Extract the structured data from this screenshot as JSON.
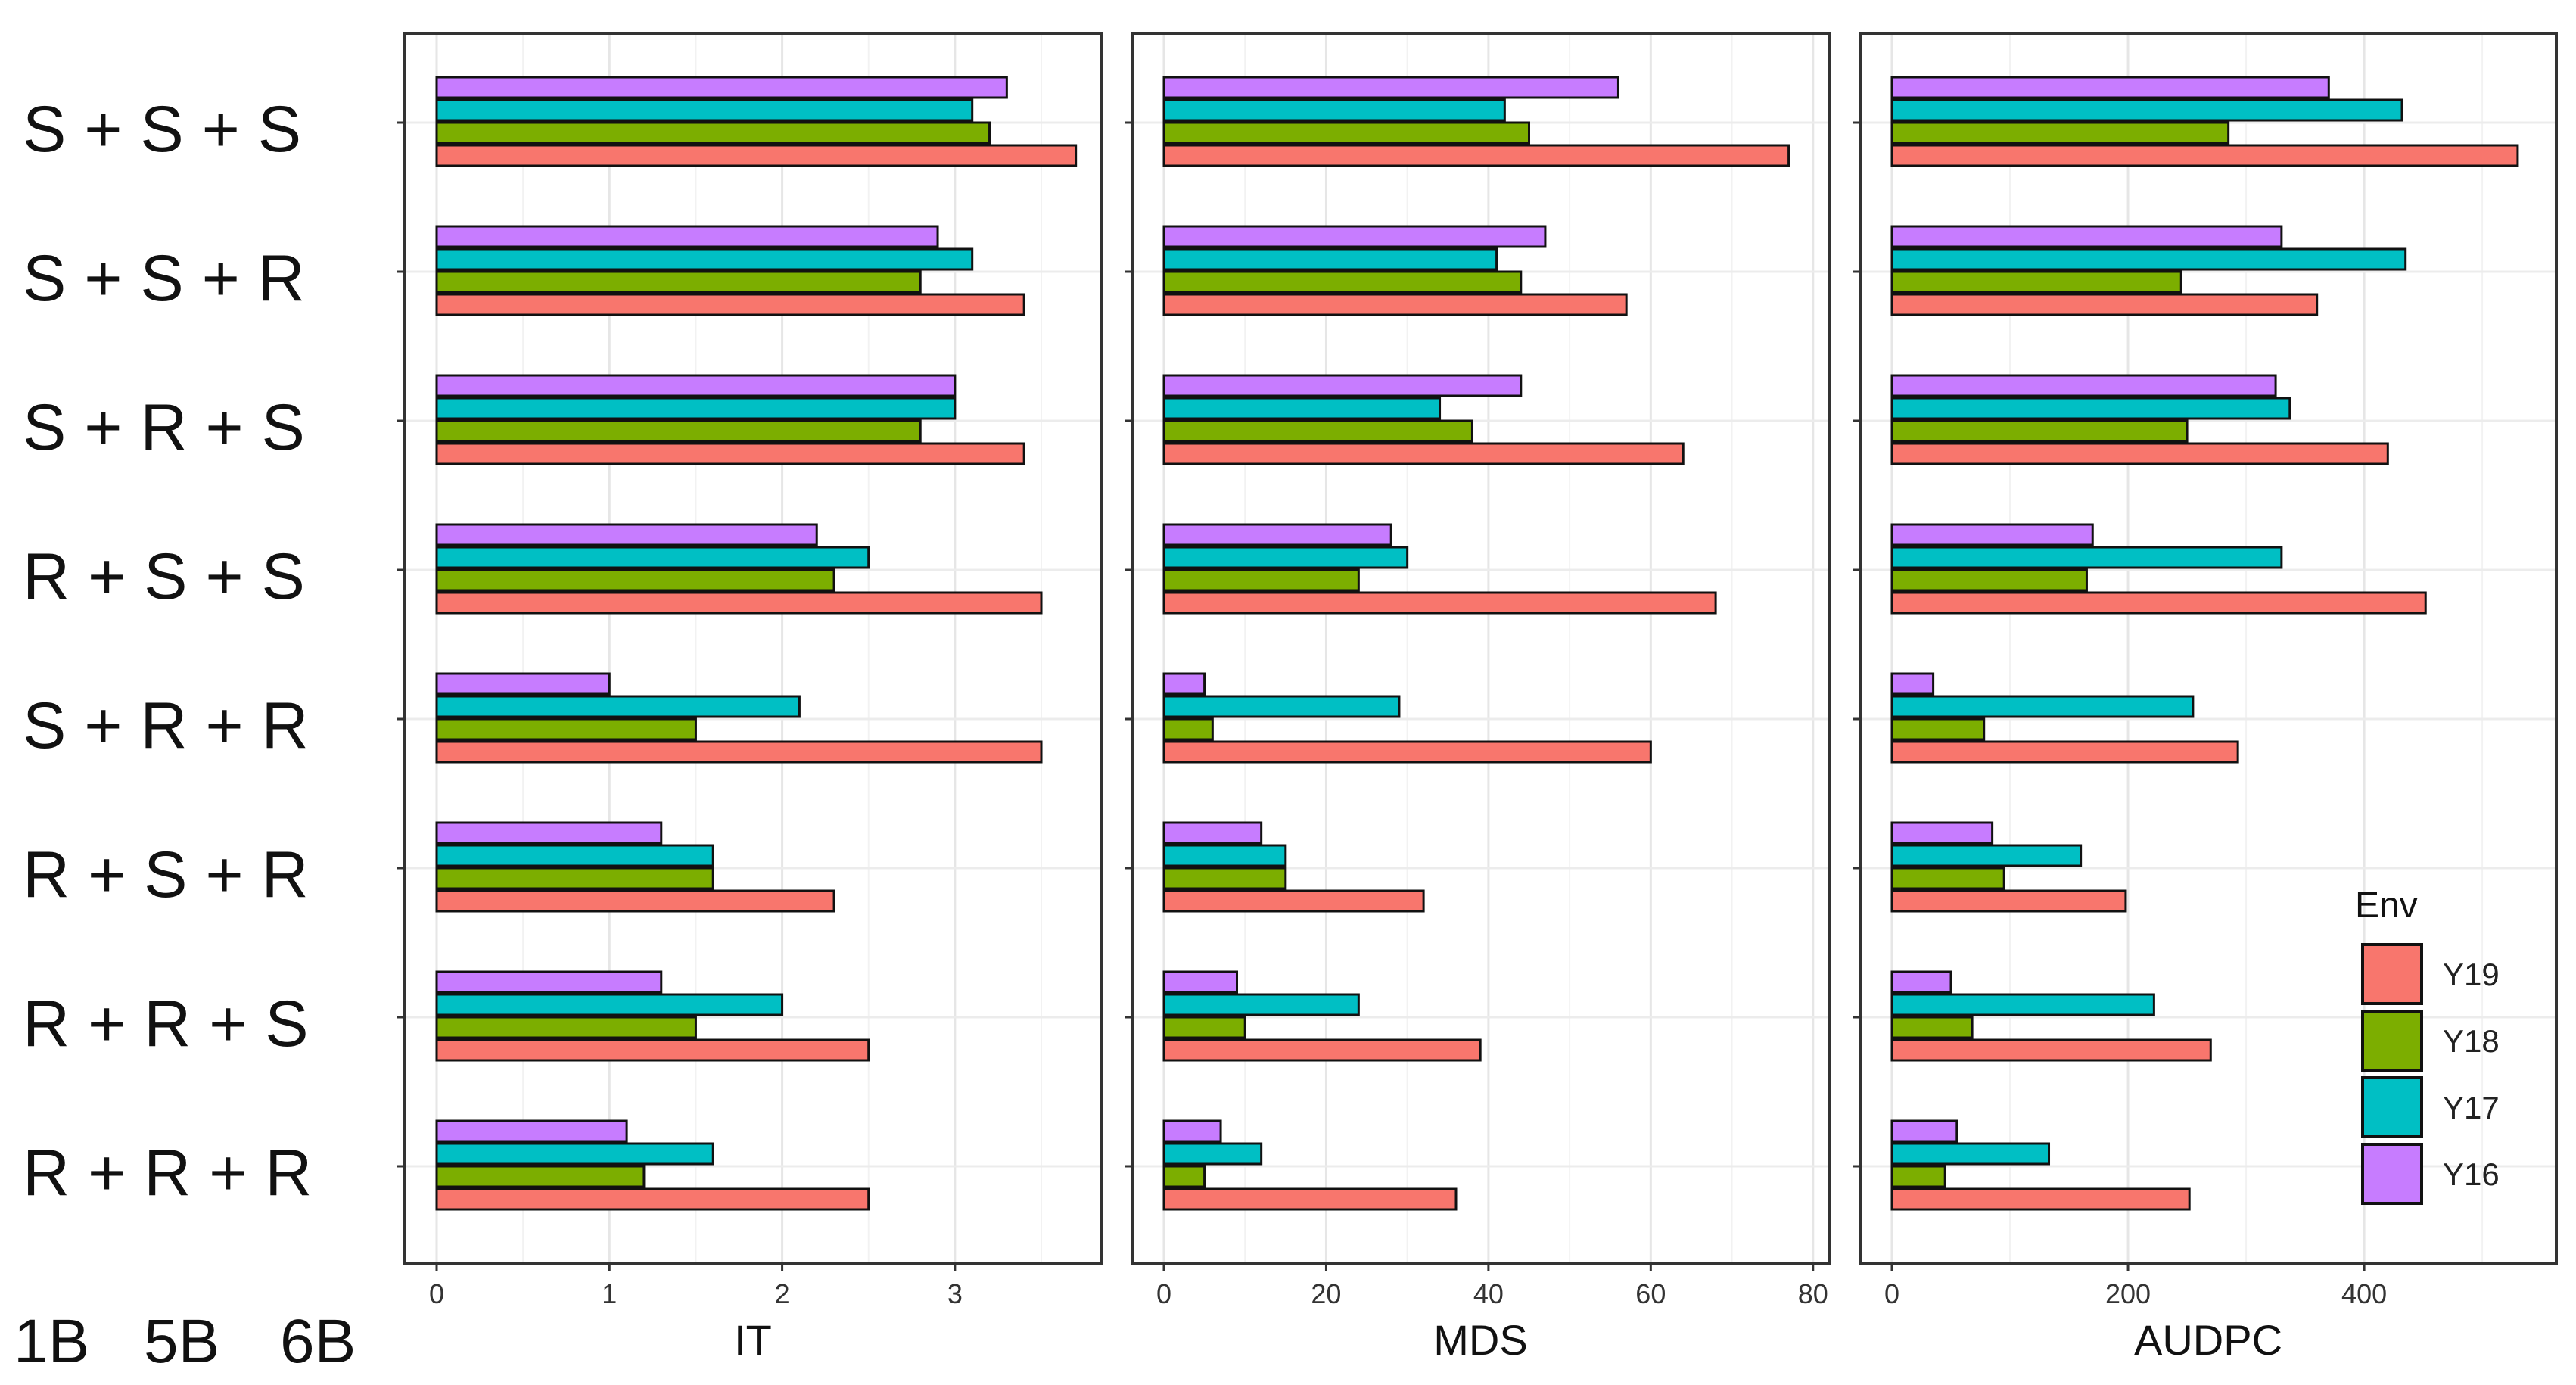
{
  "chart_data": {
    "type": "bar",
    "orientation": "horizontal",
    "categories": [
      "S + S + S",
      "S + S + R",
      "S + R + S",
      "R + S + S",
      "S + R + R",
      "R + S + R",
      "R + R + S",
      "R + R + R"
    ],
    "category_axis_caption": [
      "1B",
      "5B",
      "6B"
    ],
    "series_order": [
      "Y16",
      "Y17",
      "Y18",
      "Y19"
    ],
    "colors": {
      "Y16": "#c77cff",
      "Y17": "#00bfc4",
      "Y18": "#7cae00",
      "Y19": "#f8766d"
    },
    "legend": {
      "title": "Env",
      "entries": [
        "Y19",
        "Y18",
        "Y17",
        "Y16"
      ],
      "placement": "right"
    },
    "panels": [
      {
        "xlabel": "IT",
        "xlim": [
          0,
          3.8
        ],
        "ticks": [
          0,
          1,
          2,
          3
        ],
        "series": [
          {
            "name": "Y16",
            "values": [
              3.3,
              2.9,
              3.0,
              2.2,
              1.0,
              1.3,
              1.3,
              1.1
            ]
          },
          {
            "name": "Y17",
            "values": [
              3.1,
              3.1,
              3.0,
              2.5,
              2.1,
              1.6,
              2.0,
              1.6
            ]
          },
          {
            "name": "Y18",
            "values": [
              3.2,
              2.8,
              2.8,
              2.3,
              1.5,
              1.6,
              1.5,
              1.2
            ]
          },
          {
            "name": "Y19",
            "values": [
              3.7,
              3.4,
              3.4,
              3.5,
              3.5,
              2.3,
              2.5,
              2.5
            ]
          }
        ]
      },
      {
        "xlabel": "MDS",
        "xlim": [
          0,
          81
        ],
        "ticks": [
          0,
          20,
          40,
          60,
          80
        ],
        "series": [
          {
            "name": "Y16",
            "values": [
              56,
              47,
              44,
              28,
              5,
              12,
              9,
              7
            ]
          },
          {
            "name": "Y17",
            "values": [
              42,
              41,
              34,
              30,
              29,
              15,
              24,
              12
            ]
          },
          {
            "name": "Y18",
            "values": [
              45,
              44,
              38,
              24,
              6,
              15,
              10,
              5
            ]
          },
          {
            "name": "Y19",
            "values": [
              77,
              57,
              64,
              68,
              60,
              32,
              39,
              36
            ]
          }
        ]
      },
      {
        "xlabel": "AUDPC",
        "xlim": [
          0,
          556
        ],
        "ticks": [
          0,
          200,
          400
        ],
        "series": [
          {
            "name": "Y16",
            "values": [
              370,
              330,
              325,
              170,
              35,
              85,
              50,
              55
            ]
          },
          {
            "name": "Y17",
            "values": [
              432,
              435,
              337,
              330,
              255,
              160,
              222,
              133
            ]
          },
          {
            "name": "Y18",
            "values": [
              285,
              245,
              250,
              165,
              78,
              95,
              68,
              45
            ]
          },
          {
            "name": "Y19",
            "values": [
              530,
              360,
              420,
              452,
              293,
              198,
              270,
              252
            ]
          }
        ]
      }
    ]
  }
}
